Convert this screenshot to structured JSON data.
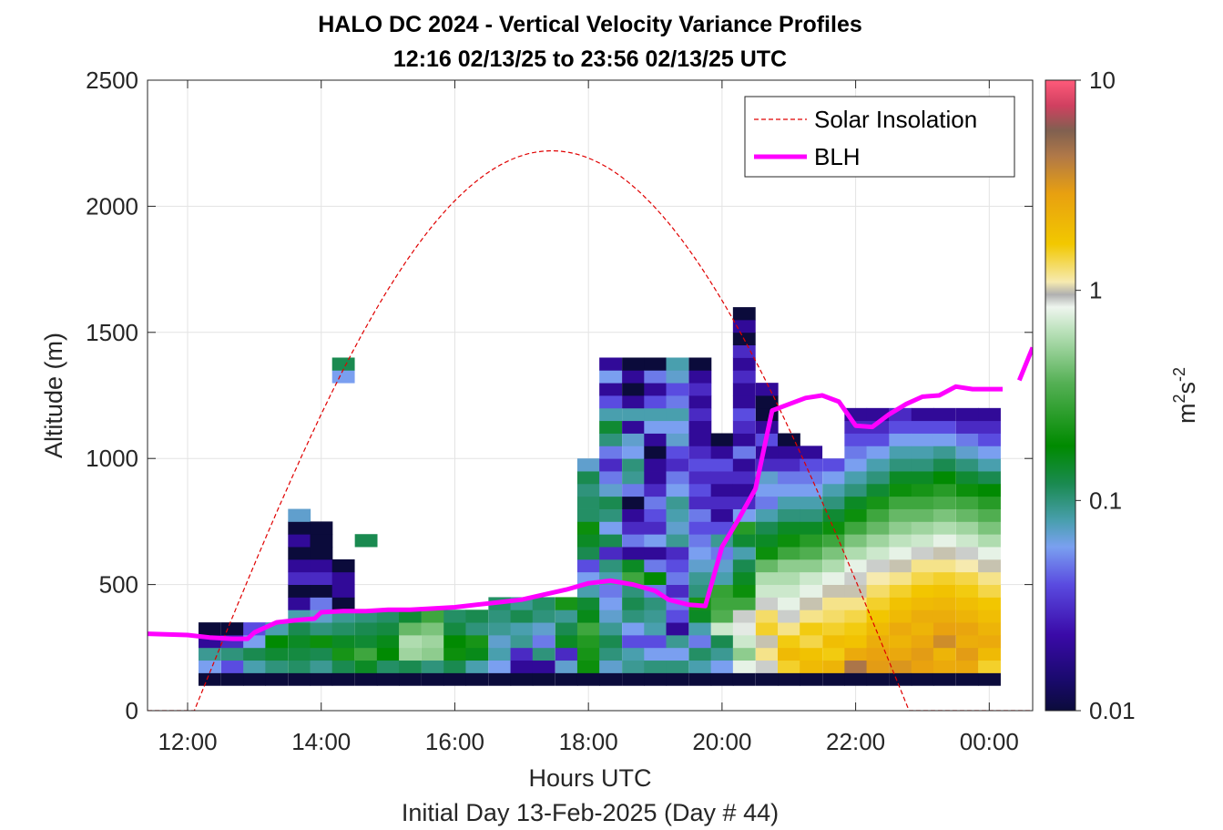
{
  "chart_data": {
    "type": "heatmap",
    "title": "HALO DC 2024 - Vertical Velocity Variance Profiles",
    "subtitle": "12:16 02/13/25 to 23:56 02/13/25  UTC",
    "xlabel": "Hours UTC",
    "xlabel2": "Initial Day 13-Feb-2025 (Day # 44)",
    "ylabel": "Altitude (m)",
    "colorbar_label_base": "m",
    "colorbar_label_sup1": "2",
    "colorbar_label_mid": "s",
    "colorbar_label_sup2": "-2",
    "xlim": [
      11.4,
      24.65
    ],
    "ylim": [
      0,
      2500
    ],
    "x_ticks": [
      12,
      14,
      16,
      18,
      20,
      22,
      24
    ],
    "x_tick_labels": [
      "12:00",
      "14:00",
      "16:00",
      "18:00",
      "20:00",
      "22:00",
      "00:00"
    ],
    "y_ticks": [
      0,
      500,
      1000,
      1500,
      2000,
      2500
    ],
    "y_tick_labels": [
      "0",
      "500",
      "1000",
      "1500",
      "2000",
      "2500"
    ],
    "colorbar_scale": "log",
    "colorbar_range": [
      0.01,
      10
    ],
    "colorbar_ticks": [
      0.01,
      0.1,
      1,
      10
    ],
    "colorbar_tick_labels": [
      "0.01",
      "0.1",
      "1",
      "10"
    ],
    "grid": true,
    "legend_position": "top-right",
    "legend": [
      {
        "label": "Solar Insolation",
        "color": "#e00000",
        "style": "dashed"
      },
      {
        "label": "BLH",
        "color": "#ff00ff",
        "style": "solid"
      }
    ],
    "colormap": [
      [
        0.0,
        "#0b0b3b"
      ],
      [
        0.05,
        "#1a0a6e"
      ],
      [
        0.12,
        "#3a0aa8"
      ],
      [
        0.2,
        "#5a4be0"
      ],
      [
        0.26,
        "#7aa0f0"
      ],
      [
        0.3,
        "#4a9fb0"
      ],
      [
        0.36,
        "#1a8a50"
      ],
      [
        0.42,
        "#008a00"
      ],
      [
        0.52,
        "#55b055"
      ],
      [
        0.6,
        "#b8e0b8"
      ],
      [
        0.64,
        "#eef5ee"
      ],
      [
        0.66,
        "#b0b0b0"
      ],
      [
        0.68,
        "#f6eab0"
      ],
      [
        0.74,
        "#f2c800"
      ],
      [
        0.82,
        "#e8a010"
      ],
      [
        0.88,
        "#b07848"
      ],
      [
        0.92,
        "#806050"
      ],
      [
        0.96,
        "#d04060"
      ],
      [
        1.0,
        "#ff5a7a"
      ]
    ],
    "variance_columns": [
      {
        "x": 12.33,
        "v": [
          0.01,
          0.06,
          0.09,
          0.02,
          0.01
        ]
      },
      {
        "x": 12.67,
        "v": [
          0.01,
          0.04,
          0.1,
          0.03,
          0.01
        ]
      },
      {
        "x": 13.0,
        "v": [
          0.01,
          0.08,
          0.12,
          0.06,
          0.04
        ]
      },
      {
        "x": 13.33,
        "v": [
          0.01,
          0.1,
          0.14,
          0.18,
          0.08
        ]
      },
      {
        "x": 13.67,
        "v": [
          0.01,
          0.11,
          0.13,
          0.15,
          0.12,
          0.08,
          0.02,
          0.01,
          0.03,
          0.02,
          0.01,
          0.02,
          0.01,
          0.07
        ]
      },
      {
        "x": 14.0,
        "v": [
          0.01,
          0.09,
          0.12,
          0.2,
          0.1,
          0.07,
          0.05,
          0.01,
          0.03,
          0.02,
          0.01,
          0.01,
          0.01
        ]
      },
      {
        "x": 14.33,
        "v": [
          0.01,
          0.12,
          0.22,
          0.15,
          0.11,
          0.09,
          0.01,
          0.02,
          0.02,
          0.01,
          0.0,
          0.0,
          0.0,
          0.0,
          0.0,
          0.0,
          0.0,
          0.0,
          0.0,
          0.0,
          0.0,
          0.0,
          0.0,
          0.0,
          0.06,
          0.12
        ]
      },
      {
        "x": 14.67,
        "v": [
          0.01,
          0.15,
          0.3,
          0.14,
          0.12,
          0.1,
          0.0,
          0.0,
          0.0,
          0.0,
          0.0,
          0.12
        ]
      },
      {
        "x": 15.0,
        "v": [
          0.01,
          0.11,
          0.18,
          0.16,
          0.13,
          0.11
        ]
      },
      {
        "x": 15.33,
        "v": [
          0.01,
          0.12,
          0.55,
          0.6,
          0.4,
          0.14
        ]
      },
      {
        "x": 15.67,
        "v": [
          0.01,
          0.1,
          0.5,
          0.55,
          0.45,
          0.3
        ]
      },
      {
        "x": 16.0,
        "v": [
          0.01,
          0.12,
          0.2,
          0.18,
          0.13,
          0.11
        ]
      },
      {
        "x": 16.33,
        "v": [
          0.01,
          0.08,
          0.16,
          0.22,
          0.1,
          0.12
        ]
      },
      {
        "x": 16.67,
        "v": [
          0.01,
          0.06,
          0.08,
          0.07,
          0.09,
          0.1,
          0.11
        ]
      },
      {
        "x": 17.0,
        "v": [
          0.01,
          0.02,
          0.03,
          0.09,
          0.08,
          0.12,
          0.09
        ]
      },
      {
        "x": 17.33,
        "v": [
          0.01,
          0.02,
          0.1,
          0.05,
          0.07,
          0.1,
          0.11
        ]
      },
      {
        "x": 17.67,
        "v": [
          0.01,
          0.07,
          0.03,
          0.15,
          0.12,
          0.09,
          0.22
        ]
      },
      {
        "x": 18.0,
        "v": [
          0.01,
          0.2,
          0.22,
          0.24,
          0.3,
          0.16,
          0.14,
          0.08,
          0.06,
          0.04,
          0.12,
          0.15,
          0.2,
          0.11,
          0.11,
          0.1,
          0.12,
          0.07
        ]
      },
      {
        "x": 18.33,
        "v": [
          0.01,
          0.07,
          0.1,
          0.12,
          0.09,
          0.07,
          0.06,
          0.05,
          0.08,
          0.1,
          0.03,
          0.12,
          0.06,
          0.1,
          0.12,
          0.07,
          0.05,
          0.03,
          0.05,
          0.1,
          0.14,
          0.08,
          0.04,
          0.02,
          0.06,
          0.02
        ]
      },
      {
        "x": 18.67,
        "v": [
          0.01,
          0.09,
          0.08,
          0.04,
          0.06,
          0.1,
          0.12,
          0.1,
          0.3,
          0.15,
          0.02,
          0.05,
          0.03,
          0.02,
          0.01,
          0.05,
          0.09,
          0.1,
          0.06,
          0.07,
          0.02,
          0.08,
          0.02,
          0.01,
          0.02,
          0.01
        ]
      },
      {
        "x": 19.0,
        "v": [
          0.01,
          0.1,
          0.06,
          0.04,
          0.08,
          0.09,
          0.1,
          0.05,
          0.18,
          0.05,
          0.02,
          0.06,
          0.03,
          0.04,
          0.05,
          0.03,
          0.02,
          0.02,
          0.01,
          0.02,
          0.06,
          0.08,
          0.04,
          0.02,
          0.05,
          0.01
        ]
      },
      {
        "x": 19.33,
        "v": [
          0.01,
          0.1,
          0.06,
          0.09,
          0.02,
          0.04,
          0.05,
          0.03,
          0.05,
          0.04,
          0.03,
          0.09,
          0.07,
          0.08,
          0.09,
          0.06,
          0.05,
          0.03,
          0.04,
          0.07,
          0.06,
          0.08,
          0.05,
          0.04,
          0.07,
          0.08
        ]
      },
      {
        "x": 19.67,
        "v": [
          0.01,
          0.08,
          0.11,
          0.05,
          0.08,
          0.15,
          0.22,
          0.1,
          0.09,
          0.07,
          0.06,
          0.05,
          0.04,
          0.05,
          0.03,
          0.04,
          0.03,
          0.04,
          0.03,
          0.02,
          0.02,
          0.03,
          0.02,
          0.03,
          0.02,
          0.01
        ]
      },
      {
        "x": 20.0,
        "v": [
          0.01,
          0.06,
          0.09,
          0.12,
          0.7,
          0.35,
          0.3,
          0.28,
          0.08,
          0.07,
          0.05,
          0.09,
          0.04,
          0.02,
          0.03,
          0.02,
          0.03,
          0.04,
          0.02,
          0.01,
          0.0,
          0.0,
          0.0,
          0.0,
          0.0,
          0.0,
          0.0,
          0.0,
          0.0,
          0.0,
          0.0,
          0.0,
          0.0,
          0.0,
          0.0,
          0.0,
          0.0,
          0.0,
          0.0,
          0.0
        ]
      },
      {
        "x": 20.33,
        "v": [
          0.01,
          0.8,
          0.5,
          0.7,
          0.85,
          0.9,
          0.3,
          0.2,
          0.15,
          0.12,
          0.08,
          0.14,
          0.25,
          0.06,
          0.03,
          0.02,
          0.03,
          0.02,
          0.05,
          0.02,
          0.03,
          0.04,
          0.02,
          0.02,
          0.03,
          0.02,
          0.03,
          0.01,
          0.02,
          0.01,
          0.0,
          0.0,
          0.0,
          0.0,
          0.0
        ]
      },
      {
        "x": 20.67,
        "v": [
          0.01,
          0.9,
          1.2,
          1.0,
          1.5,
          1.3,
          0.9,
          0.7,
          0.6,
          0.4,
          0.2,
          0.15,
          0.12,
          0.08,
          0.05,
          0.06,
          0.07,
          0.03,
          0.02,
          0.04,
          0.02,
          0.01,
          0.01,
          0.02
        ]
      },
      {
        "x": 21.0,
        "v": [
          0.01,
          1.5,
          2.0,
          1.6,
          1.2,
          0.9,
          0.8,
          0.7,
          0.6,
          0.5,
          0.3,
          0.2,
          0.15,
          0.1,
          0.08,
          0.06,
          0.05,
          0.03,
          0.02,
          0.01
        ]
      },
      {
        "x": 21.33,
        "v": [
          0.01,
          2.0,
          1.8,
          1.4,
          1.6,
          1.2,
          1.0,
          0.8,
          0.7,
          0.5,
          0.35,
          0.25,
          0.15,
          0.1,
          0.08,
          0.06,
          0.05,
          0.04,
          0.02
        ]
      },
      {
        "x": 21.67,
        "v": [
          0.01,
          2.2,
          1.6,
          1.9,
          1.5,
          1.3,
          1.2,
          1.0,
          0.8,
          0.6,
          0.45,
          0.3,
          0.2,
          0.14,
          0.1,
          0.08,
          0.06,
          0.04
        ]
      },
      {
        "x": 22.0,
        "v": [
          0.01,
          4.5,
          2.5,
          1.8,
          1.6,
          1.4,
          1.2,
          1.0,
          0.9,
          0.8,
          0.6,
          0.45,
          0.3,
          0.2,
          0.15,
          0.1,
          0.08,
          0.06,
          0.05,
          0.04,
          0.03,
          0.02
        ]
      },
      {
        "x": 22.33,
        "v": [
          0.01,
          3.0,
          2.8,
          2.4,
          2.0,
          1.7,
          1.5,
          1.3,
          1.1,
          0.9,
          0.7,
          0.55,
          0.4,
          0.3,
          0.22,
          0.14,
          0.1,
          0.08,
          0.06,
          0.04,
          0.03,
          0.02
        ]
      },
      {
        "x": 22.67,
        "v": [
          0.01,
          3.2,
          2.6,
          2.2,
          2.5,
          2.0,
          1.8,
          1.5,
          1.2,
          1.0,
          0.8,
          0.65,
          0.5,
          0.4,
          0.3,
          0.2,
          0.15,
          0.1,
          0.08,
          0.06,
          0.04,
          0.03
        ]
      },
      {
        "x": 23.0,
        "v": [
          0.01,
          2.8,
          3.0,
          2.6,
          2.2,
          2.4,
          2.0,
          1.7,
          1.4,
          1.2,
          0.9,
          0.7,
          0.55,
          0.4,
          0.3,
          0.22,
          0.15,
          0.1,
          0.08,
          0.06,
          0.04,
          0.02
        ]
      },
      {
        "x": 23.33,
        "v": [
          0.01,
          2.5,
          2.2,
          3.5,
          2.8,
          2.4,
          2.1,
          1.8,
          1.5,
          1.2,
          1.0,
          0.8,
          0.6,
          0.45,
          0.33,
          0.25,
          0.18,
          0.12,
          0.09,
          0.06,
          0.04,
          0.02
        ]
      },
      {
        "x": 23.67,
        "v": [
          0.01,
          2.6,
          3.0,
          2.4,
          2.7,
          2.2,
          1.9,
          1.6,
          1.4,
          1.1,
          0.9,
          0.7,
          0.55,
          0.4,
          0.3,
          0.2,
          0.14,
          0.1,
          0.07,
          0.05,
          0.03,
          0.02
        ]
      },
      {
        "x": 24.0,
        "v": [
          0.01,
          1.5,
          2.0,
          2.5,
          2.2,
          1.9,
          1.7,
          1.4,
          1.2,
          1.0,
          0.8,
          0.6,
          0.45,
          0.35,
          0.25,
          0.18,
          0.12,
          0.08,
          0.06,
          0.04,
          0.03,
          0.02
        ]
      }
    ],
    "blh_series": {
      "name": "BLH",
      "x": [
        11.4,
        12.0,
        12.33,
        12.67,
        12.9,
        13.0,
        13.33,
        13.67,
        13.9,
        14.0,
        14.33,
        14.67,
        15.0,
        15.33,
        15.67,
        16.0,
        16.33,
        16.67,
        17.0,
        17.33,
        17.67,
        18.0,
        18.33,
        18.67,
        19.0,
        19.2,
        19.5,
        19.75,
        20.0,
        20.25,
        20.5,
        20.75,
        21.0,
        21.25,
        21.5,
        21.75,
        22.0,
        22.25,
        22.5,
        22.75,
        23.0,
        23.25,
        23.5,
        23.75,
        24.0,
        24.2
      ],
      "values": [
        305,
        300,
        290,
        285,
        285,
        310,
        350,
        360,
        365,
        390,
        395,
        395,
        400,
        400,
        405,
        410,
        420,
        430,
        440,
        460,
        480,
        505,
        515,
        500,
        475,
        440,
        420,
        415,
        650,
        760,
        880,
        1190,
        1215,
        1240,
        1250,
        1225,
        1130,
        1125,
        1175,
        1215,
        1245,
        1250,
        1285,
        1275,
        1275,
        1275
      ]
    },
    "blh_segment_2": {
      "x": [
        24.45,
        24.65
      ],
      "values": [
        1310,
        1440
      ]
    },
    "solar_series": {
      "name": "Solar Insolation",
      "sunrise": 12.1,
      "sunset": 22.8,
      "peak": 2220
    }
  }
}
